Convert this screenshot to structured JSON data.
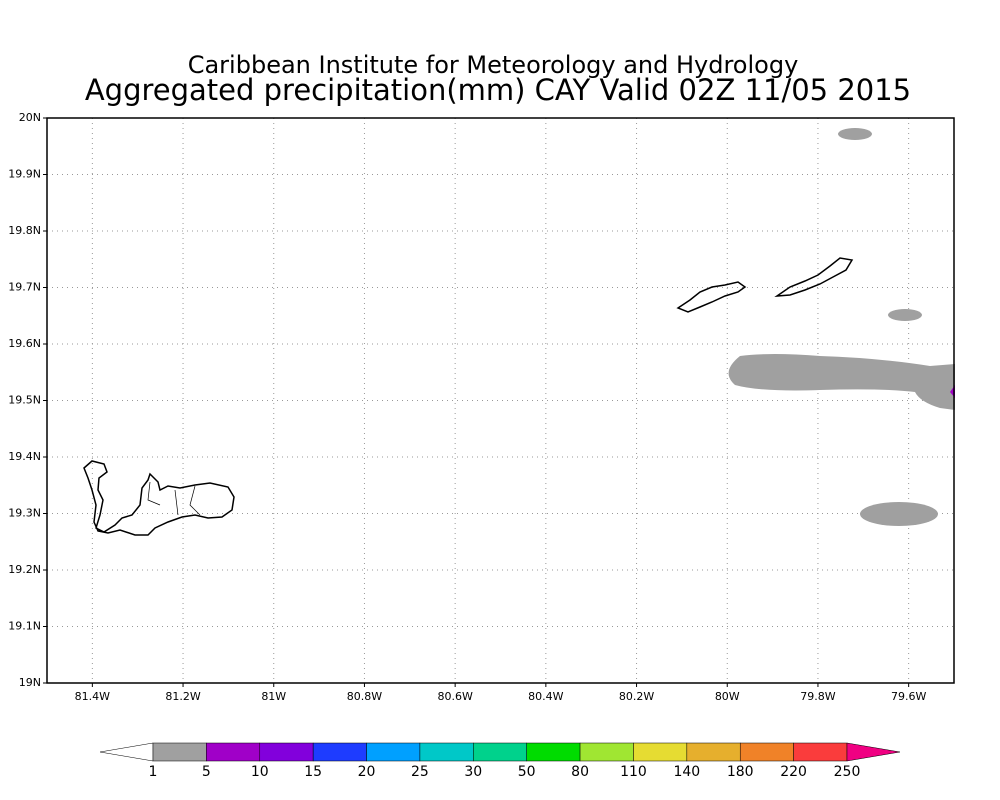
{
  "map": {
    "title": "Caribbean Institute for Meteorology and Hydrology",
    "subtitle": "Aggregated precipitation(mm) CAY Valid 02Z 11/05 2015",
    "xlim": [
      -81.5,
      -79.5
    ],
    "ylim": [
      19,
      20
    ],
    "xticks": [
      {
        "value": -81.4,
        "label": "81.4W"
      },
      {
        "value": -81.2,
        "label": "81.2W"
      },
      {
        "value": -81,
        "label": "81W"
      },
      {
        "value": -80.8,
        "label": "80.8W"
      },
      {
        "value": -80.6,
        "label": "80.6W"
      },
      {
        "value": -80.4,
        "label": "80.4W"
      },
      {
        "value": -80.2,
        "label": "80.2W"
      },
      {
        "value": -80,
        "label": "80W"
      },
      {
        "value": -79.8,
        "label": "79.8W"
      },
      {
        "value": -79.6,
        "label": "79.6W"
      }
    ],
    "yticks": [
      {
        "value": 19,
        "label": "19N"
      },
      {
        "value": 19.1,
        "label": "19.1N"
      },
      {
        "value": 19.2,
        "label": "19.2N"
      },
      {
        "value": 19.3,
        "label": "19.3N"
      },
      {
        "value": 19.4,
        "label": "19.4N"
      },
      {
        "value": 19.5,
        "label": "19.5N"
      },
      {
        "value": 19.6,
        "label": "19.6N"
      },
      {
        "value": 19.7,
        "label": "19.7N"
      },
      {
        "value": 19.8,
        "label": "19.8N"
      },
      {
        "value": 19.9,
        "label": "19.9N"
      },
      {
        "value": 20,
        "label": "20N"
      }
    ],
    "grid": true,
    "colorbar": {
      "labels": [
        1,
        5,
        10,
        15,
        20,
        25,
        30,
        50,
        80,
        110,
        140,
        180,
        220,
        250
      ],
      "colors": [
        "#ffffff",
        "#a0a0a0",
        "#a000c8",
        "#8200dc",
        "#1e3cff",
        "#00a0ff",
        "#00c8c8",
        "#00d28c",
        "#00dc00",
        "#a0e632",
        "#e6dc32",
        "#e6af2d",
        "#f08228",
        "#fa3c3c",
        "#f00082"
      ]
    }
  }
}
